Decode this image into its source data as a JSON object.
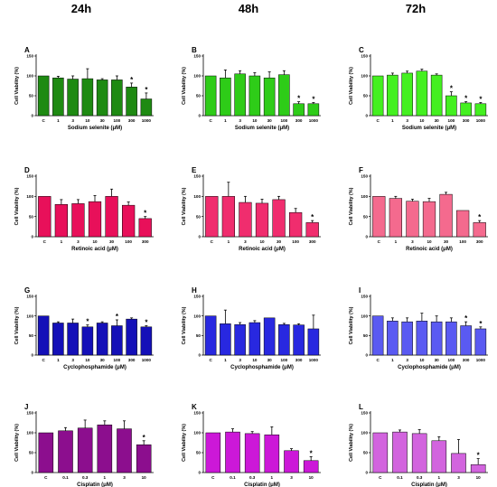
{
  "column_titles": [
    "24h",
    "48h",
    "72h"
  ],
  "chart_data": [
    {
      "panel": "A",
      "type": "bar",
      "color": "#1e8a12",
      "title": "",
      "xlabel": "Sodium selenite (μM)",
      "ylabel": "Cell Viability (%)",
      "ylim": [
        0,
        150
      ],
      "yticks": [
        0,
        50,
        100,
        150
      ],
      "categories": [
        "C",
        "1",
        "3",
        "10",
        "30",
        "100",
        "300",
        "1000"
      ],
      "values": [
        100,
        95,
        92,
        93,
        90,
        90,
        72,
        42
      ],
      "errors": [
        0,
        4,
        8,
        25,
        3,
        10,
        10,
        15
      ],
      "significant": [
        false,
        false,
        false,
        false,
        false,
        false,
        true,
        true
      ]
    },
    {
      "panel": "B",
      "type": "bar",
      "color": "#2ecc18",
      "title": "",
      "xlabel": "Sodium selenite (μM)",
      "ylabel": "Cell Viability (%)",
      "ylim": [
        0,
        150
      ],
      "yticks": [
        0,
        50,
        100,
        150
      ],
      "categories": [
        "C",
        "1",
        "3",
        "10",
        "30",
        "100",
        "300",
        "1000"
      ],
      "values": [
        100,
        95,
        105,
        100,
        95,
        103,
        30,
        30
      ],
      "errors": [
        0,
        20,
        8,
        8,
        15,
        10,
        5,
        3
      ],
      "significant": [
        false,
        false,
        false,
        false,
        false,
        false,
        true,
        true
      ]
    },
    {
      "panel": "C",
      "type": "bar",
      "color": "#44f020",
      "title": "",
      "xlabel": "Sodium selenite (μM)",
      "ylabel": "Cell Viability (%)",
      "ylim": [
        0,
        150
      ],
      "yticks": [
        0,
        50,
        100,
        150
      ],
      "categories": [
        "C",
        "1",
        "3",
        "10",
        "30",
        "100",
        "300",
        "1000"
      ],
      "values": [
        100,
        102,
        107,
        112,
        102,
        50,
        32,
        30
      ],
      "errors": [
        0,
        5,
        5,
        5,
        3,
        10,
        3,
        3
      ],
      "significant": [
        false,
        false,
        false,
        false,
        false,
        true,
        true,
        true
      ]
    },
    {
      "panel": "D",
      "type": "bar",
      "color": "#e8105a",
      "title": "",
      "xlabel": "Retinoic acid (μM)",
      "ylabel": "Cell Viability (%)",
      "ylim": [
        0,
        150
      ],
      "yticks": [
        0,
        50,
        100,
        150
      ],
      "categories": [
        "C",
        "1",
        "3",
        "10",
        "30",
        "100",
        "300"
      ],
      "values": [
        100,
        80,
        82,
        87,
        100,
        78,
        45
      ],
      "errors": [
        0,
        12,
        10,
        15,
        18,
        8,
        5
      ],
      "significant": [
        false,
        false,
        false,
        false,
        false,
        false,
        true
      ]
    },
    {
      "panel": "E",
      "type": "bar",
      "color": "#f02d6e",
      "title": "",
      "xlabel": "Retinoic acid (μM)",
      "ylabel": "Cell Viability (%)",
      "ylim": [
        0,
        150
      ],
      "yticks": [
        0,
        50,
        100,
        150
      ],
      "categories": [
        "C",
        "1",
        "3",
        "10",
        "30",
        "100",
        "300"
      ],
      "values": [
        100,
        100,
        85,
        83,
        92,
        60,
        35
      ],
      "errors": [
        0,
        35,
        15,
        10,
        8,
        10,
        5
      ],
      "significant": [
        false,
        false,
        false,
        false,
        false,
        false,
        true
      ]
    },
    {
      "panel": "F",
      "type": "bar",
      "color": "#f46a8e",
      "title": "",
      "xlabel": "Retinoic acid (μM)",
      "ylabel": "Cell Viability (%)",
      "ylim": [
        0,
        150
      ],
      "yticks": [
        0,
        50,
        100,
        150
      ],
      "categories": [
        "C",
        "1",
        "3",
        "10",
        "30",
        "100",
        "300"
      ],
      "values": [
        100,
        95,
        88,
        87,
        105,
        65,
        35
      ],
      "errors": [
        0,
        5,
        5,
        8,
        5,
        0,
        5
      ],
      "significant": [
        false,
        false,
        false,
        false,
        false,
        false,
        true
      ]
    },
    {
      "panel": "G",
      "type": "bar",
      "color": "#1410b8",
      "title": "",
      "xlabel": "Cyclophosphamide (μM)",
      "ylabel": "Cell Viability (%)",
      "ylim": [
        0,
        150
      ],
      "yticks": [
        0,
        50,
        100,
        150
      ],
      "categories": [
        "C",
        "1",
        "3",
        "10",
        "30",
        "100",
        "300",
        "1000"
      ],
      "values": [
        100,
        82,
        82,
        72,
        82,
        75,
        92,
        72
      ],
      "errors": [
        0,
        3,
        10,
        5,
        3,
        15,
        3,
        3
      ],
      "significant": [
        false,
        false,
        false,
        true,
        false,
        true,
        false,
        true
      ]
    },
    {
      "panel": "H",
      "type": "bar",
      "color": "#2828e0",
      "title": "",
      "xlabel": "Cyclophosphamide (μM)",
      "ylabel": "Cell Viability (%)",
      "ylim": [
        0,
        150
      ],
      "yticks": [
        0,
        50,
        100,
        150
      ],
      "categories": [
        "C",
        "1",
        "3",
        "10",
        "30",
        "100",
        "300",
        "1000"
      ],
      "values": [
        100,
        80,
        78,
        83,
        95,
        78,
        77,
        67
      ],
      "errors": [
        0,
        35,
        5,
        5,
        0,
        3,
        3,
        35
      ],
      "significant": [
        false,
        false,
        false,
        false,
        false,
        false,
        false,
        false
      ]
    },
    {
      "panel": "I",
      "type": "bar",
      "color": "#5a5af2",
      "title": "",
      "xlabel": "Cyclophosphamide (μM)",
      "ylabel": "Cell Viability (%)",
      "ylim": [
        0,
        150
      ],
      "yticks": [
        0,
        50,
        100,
        150
      ],
      "categories": [
        "C",
        "1",
        "3",
        "10",
        "30",
        "100",
        "300",
        "1000"
      ],
      "values": [
        100,
        87,
        85,
        87,
        85,
        85,
        75,
        67
      ],
      "errors": [
        0,
        8,
        10,
        20,
        15,
        10,
        10,
        5
      ],
      "significant": [
        false,
        false,
        false,
        false,
        false,
        false,
        true,
        true
      ]
    },
    {
      "panel": "J",
      "type": "bar",
      "color": "#8c0e8e",
      "title": "",
      "xlabel": "Cisplatin (μM)",
      "ylabel": "Cell Viability (%)",
      "ylim": [
        0,
        150
      ],
      "yticks": [
        0,
        50,
        100,
        150
      ],
      "categories": [
        "C",
        "0.1",
        "0.3",
        "1",
        "3",
        "10"
      ],
      "values": [
        100,
        105,
        112,
        120,
        110,
        70
      ],
      "errors": [
        0,
        8,
        20,
        10,
        20,
        10
      ],
      "significant": [
        false,
        false,
        false,
        false,
        false,
        true
      ]
    },
    {
      "panel": "K",
      "type": "bar",
      "color": "#cc18d8",
      "title": "",
      "xlabel": "Cisplatin (μM)",
      "ylabel": "Cell Viability (%)",
      "ylim": [
        0,
        150
      ],
      "yticks": [
        0,
        50,
        100,
        150
      ],
      "categories": [
        "C",
        "0.1",
        "0.3",
        "1",
        "3",
        "10"
      ],
      "values": [
        100,
        102,
        98,
        95,
        55,
        30
      ],
      "errors": [
        0,
        8,
        5,
        20,
        5,
        10
      ],
      "significant": [
        false,
        false,
        false,
        false,
        false,
        true
      ]
    },
    {
      "panel": "L",
      "type": "bar",
      "color": "#d264de",
      "title": "",
      "xlabel": "Cisplatin (μM)",
      "ylabel": "Cell Viability (%)",
      "ylim": [
        0,
        150
      ],
      "yticks": [
        0,
        50,
        100,
        150
      ],
      "categories": [
        "C",
        "0.1",
        "0.3",
        "1",
        "3",
        "10"
      ],
      "values": [
        100,
        102,
        98,
        80,
        48,
        20
      ],
      "errors": [
        0,
        5,
        10,
        10,
        35,
        15
      ],
      "significant": [
        false,
        false,
        false,
        false,
        false,
        true
      ]
    }
  ]
}
